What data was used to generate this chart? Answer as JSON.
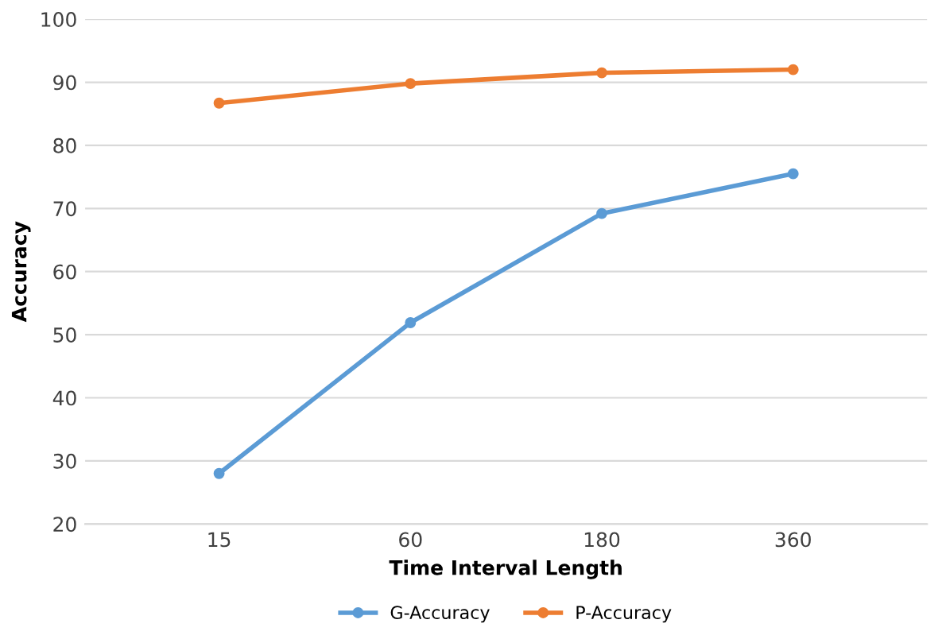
{
  "chart_data": {
    "type": "line",
    "xlabel": "Time Interval Length",
    "ylabel": "Accuracy",
    "categories": [
      "15",
      "60",
      "180",
      "360"
    ],
    "series": [
      {
        "name": "G-Accuracy",
        "color": "#5b9bd5",
        "values": [
          28.0,
          51.9,
          69.2,
          75.5
        ]
      },
      {
        "name": "P-Accuracy",
        "color": "#ed7d31",
        "values": [
          86.7,
          89.8,
          91.5,
          92.0
        ]
      }
    ],
    "ylim": [
      20,
      100
    ],
    "yticks": [
      20,
      30,
      40,
      50,
      60,
      70,
      80,
      90,
      100
    ],
    "grid": "y",
    "legend": "bottom",
    "marker": "circle",
    "line_style": "solid"
  }
}
